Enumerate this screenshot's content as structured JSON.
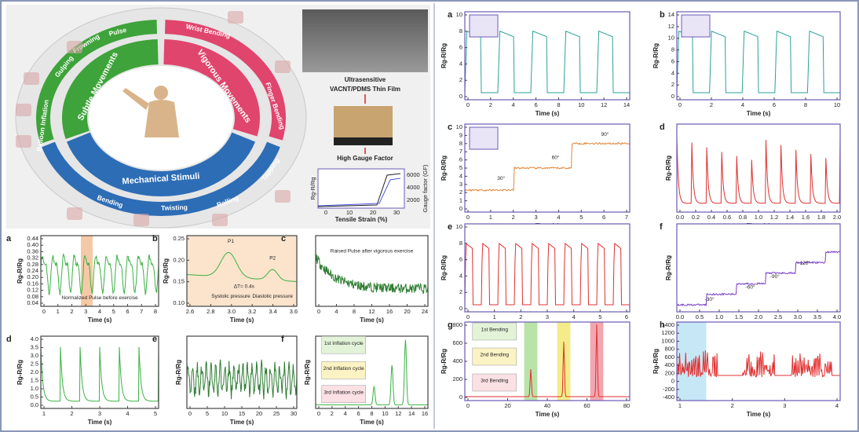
{
  "diagram": {
    "sectors": [
      "Subtle Movements",
      "Vigorous Movements",
      "Mechanical Stimuli"
    ],
    "stimuli": [
      "Pulse",
      "Frowning",
      "Gulping",
      "Balloon Inflation",
      "Wrist Bending",
      "Finger Bending",
      "Tapping",
      "Rolling",
      "Twisting",
      "Bending"
    ],
    "film": [
      "Ultrasensitive",
      "VACNT/PDMS Thin Film"
    ],
    "gauge": "High Gauge Factor",
    "inset": {
      "xlabel": "Tensile Strain (%)",
      "ylabel": "Rg-R/Rg",
      "y2label": "Gauge factor (GF)",
      "xticks": [
        "0",
        "10",
        "20",
        "30"
      ],
      "y2ticks": [
        "2000",
        "4000",
        "6000"
      ]
    }
  },
  "panels": [
    {
      "label": "a",
      "ylabel": "Rg-R/Rg",
      "xlabel": "Time (s)",
      "xticks": [
        "0",
        "1",
        "2",
        "3",
        "4",
        "5",
        "6",
        "7",
        "8"
      ],
      "yticks": [
        "0.04",
        "0.08",
        "0.12",
        "0.16",
        "0.20",
        "0.24",
        "0.28",
        "0.32",
        "0.36",
        "0.40",
        "0.44"
      ],
      "notes": [
        "Normalized Pulse before exercise"
      ]
    },
    {
      "label": "b",
      "ylabel": "Rg-R/Rg",
      "xlabel": "Time (s)",
      "xticks": [
        "2.6",
        "2.8",
        "3.0",
        "3.2",
        "3.4",
        "3.6"
      ],
      "yticks": [
        "0.10",
        "0.15",
        "0.20",
        "0.25"
      ],
      "notes": [
        "P1",
        "P2",
        "ΔT= 0.4s",
        "Systolic pressure",
        "Diastolic pressure"
      ]
    },
    {
      "label": "c",
      "xlabel": "Time (s)",
      "xticks": [
        "0",
        "4",
        "8",
        "12",
        "16",
        "20",
        "24"
      ],
      "notes": [
        "Raised Pulse after vigorous exercise"
      ]
    },
    {
      "label": "d",
      "ylabel": "Rg-R/Rg",
      "xlabel": "Time (s)",
      "xticks": [
        "1",
        "2",
        "3",
        "4",
        "5"
      ],
      "yticks": [
        "0.0",
        "0.5",
        "1.0",
        "1.5",
        "2.0",
        "2.5",
        "3.0",
        "3.5",
        "4.0"
      ]
    },
    {
      "label": "e",
      "ylabel": "Rg-R/Rg",
      "xlabel": "Time (s)",
      "xticks": [
        "0",
        "5",
        "10",
        "15",
        "20",
        "25",
        "30"
      ]
    },
    {
      "label": "f",
      "ylabel": "Rg-R/Rg",
      "xlabel": "Time (s)",
      "xticks": [
        "0",
        "2",
        "4",
        "6",
        "8",
        "10",
        "12",
        "14",
        "16"
      ],
      "notes": [
        "1st Inflation cycle",
        "2nd Inflation cycle",
        "3rd Inflation cycle"
      ]
    },
    {
      "label": "a",
      "ylabel": "Rg-R/Rg",
      "xlabel": "Time (s)",
      "xticks": [
        "0",
        "2",
        "4",
        "6",
        "8",
        "10",
        "12",
        "14"
      ],
      "yticks": [
        "0",
        "2",
        "4",
        "6",
        "8",
        "10"
      ]
    },
    {
      "label": "b",
      "ylabel": "Rg-R/Rg",
      "xlabel": "Time (s)",
      "xticks": [
        "0",
        "2",
        "4",
        "6",
        "8",
        "10"
      ],
      "yticks": [
        "0",
        "2",
        "4",
        "6",
        "8",
        "10",
        "12",
        "14"
      ]
    },
    {
      "label": "c",
      "ylabel": "Rg-R/Rg",
      "xlabel": "Time (s)",
      "xticks": [
        "0",
        "1",
        "2",
        "3",
        "4",
        "5",
        "6",
        "7"
      ],
      "yticks": [
        "0",
        "1",
        "2",
        "3",
        "4",
        "5",
        "6",
        "7",
        "8",
        "9",
        "10"
      ],
      "notes": [
        "30°",
        "60°",
        "90°"
      ]
    },
    {
      "label": "d",
      "ylabel": "Rg-R/Rg",
      "xlabel": "Time (s)",
      "xticks": [
        "0.0",
        "0.2",
        "0.4",
        "0.6",
        "0.8",
        "1.0",
        "1.2",
        "1.4",
        "1.6",
        "1.8",
        "2.0"
      ]
    },
    {
      "label": "e",
      "ylabel": "Rg-R/Rg",
      "xlabel": "Time (s)",
      "xticks": [
        "0",
        "1",
        "2",
        "3",
        "4",
        "5",
        "6"
      ],
      "yticks": [
        "0",
        "2",
        "4",
        "6",
        "8",
        "10"
      ]
    },
    {
      "label": "f",
      "ylabel": "Rg-R/Rg",
      "xlabel": "Time (s)",
      "xticks": [
        "0.0",
        "0.5",
        "1.0",
        "1.5",
        "2.0",
        "2.5",
        "3.0",
        "3.5",
        "4.0"
      ],
      "notes": [
        "-30°",
        "-60°",
        "-90°",
        "-120°"
      ]
    },
    {
      "label": "g",
      "ylabel": "Rg-R/Rg",
      "xlabel": "Time (s)",
      "xticks": [
        "0",
        "20",
        "40",
        "60",
        "80"
      ],
      "yticks": [
        "0",
        "200",
        "400",
        "600",
        "800"
      ],
      "notes": [
        "1st Bending",
        "2nd Bending",
        "3rd Bending"
      ]
    },
    {
      "label": "h",
      "ylabel": "Rg-R/Rg",
      "xlabel": "Time (s)",
      "xticks": [
        "1",
        "2",
        "3",
        "4"
      ],
      "yticks": [
        "-400",
        "-200",
        "0",
        "200",
        "400",
        "600",
        "800",
        "1000",
        "1200",
        "1400"
      ]
    }
  ]
}
